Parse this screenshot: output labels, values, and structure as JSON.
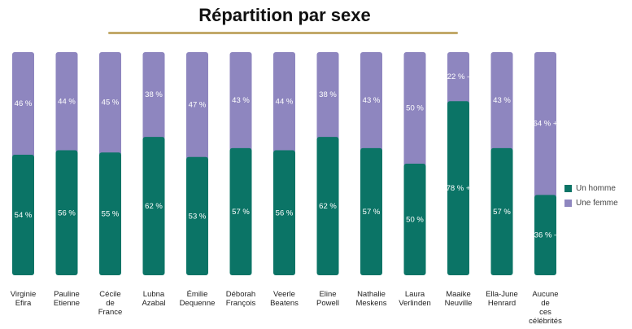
{
  "title": "Répartition par sexe",
  "colors": {
    "homme": "#0b7466",
    "femme": "#8e86bf",
    "accent": "#c2a96a"
  },
  "chart_data": {
    "type": "bar",
    "stacked": true,
    "orientation": "vertical",
    "categories": [
      [
        "Virginie",
        "Efira"
      ],
      [
        "Pauline",
        "Etienne"
      ],
      [
        "Cécile",
        "de",
        "France"
      ],
      [
        "Lubna",
        "Azabal"
      ],
      [
        "Émilie",
        "Dequenne"
      ],
      [
        "Déborah",
        "François"
      ],
      [
        "Veerle",
        "Beatens"
      ],
      [
        "Eline",
        "Powell"
      ],
      [
        "Nathalie",
        "Meskens"
      ],
      [
        "Laura",
        "Verlinden"
      ],
      [
        "Maaike",
        "Neuville"
      ],
      [
        "Ella-June",
        "Henrard"
      ],
      [
        "Aucune",
        "de",
        "ces",
        "célébrités"
      ]
    ],
    "series": [
      {
        "name": "Un homme",
        "values": [
          54,
          56,
          55,
          62,
          53,
          57,
          56,
          62,
          57,
          50,
          78,
          57,
          36
        ],
        "labels": [
          "54 %",
          "56 %",
          "55 %",
          "62 %",
          "53 %",
          "57 %",
          "56 %",
          "62 %",
          "57 %",
          "50 %",
          "78 % +",
          "57 %",
          "36 % -"
        ]
      },
      {
        "name": "Une femme",
        "values": [
          46,
          44,
          45,
          38,
          47,
          43,
          44,
          38,
          43,
          50,
          22,
          43,
          64
        ],
        "labels": [
          "46 %",
          "44 %",
          "45 %",
          "38 %",
          "47 %",
          "43 %",
          "44 %",
          "38 %",
          "43 %",
          "50 %",
          "22 % -",
          "43 %",
          "64 % +"
        ]
      }
    ],
    "ylim": [
      0,
      100
    ],
    "legend": "right"
  }
}
